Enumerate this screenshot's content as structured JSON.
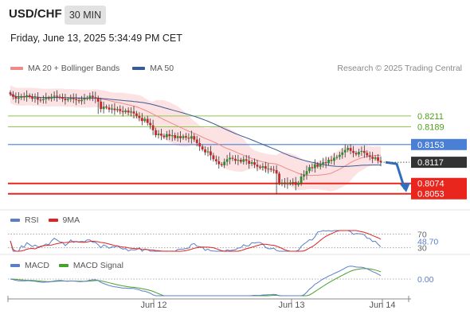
{
  "header": {
    "pair": "USD/CHF",
    "timeframe": "30 MIN",
    "datetime": "Friday, June 13, 2025 5:34:49 PM CET"
  },
  "legends": {
    "main": [
      {
        "label": "MA 20 + Bollinger Bands",
        "color": "#f08a8a"
      },
      {
        "label": "MA 50",
        "color": "#3a5a96"
      }
    ],
    "rsi": [
      {
        "label": "RSI",
        "color": "#5a7ec8"
      },
      {
        "label": "9MA",
        "color": "#e22222"
      }
    ],
    "macd": [
      {
        "label": "MACD",
        "color": "#5a7ec8"
      },
      {
        "label": "MACD Signal",
        "color": "#4aa02c"
      }
    ]
  },
  "copyright": "Research © 2025 Trading Central",
  "colors": {
    "up": "#2e8b2e",
    "down": "#c62828",
    "band": "#fbd8d8",
    "ma20": "#f08a8a",
    "ma50": "#3a5a96",
    "support": "#e8261d",
    "resistance": "#8cc84b",
    "pivot": "#4a7fd6",
    "price_box": "#333333",
    "forecast_arrow": "#2f6fbe"
  },
  "chart_data": [
    {
      "type": "candlestick",
      "title": "USD/CHF 30 MIN",
      "x_ticks": [
        "Jun 12",
        "Jun 13",
        "Jun 14"
      ],
      "last_price": 0.8117,
      "levels": [
        {
          "value": 0.8211,
          "label": "0.8211",
          "kind": "resistance"
        },
        {
          "value": 0.8189,
          "label": "0.8189",
          "kind": "resistance"
        },
        {
          "value": 0.8153,
          "label": "0.8153",
          "kind": "pivot"
        },
        {
          "value": 0.8074,
          "label": "0.8074",
          "kind": "support"
        },
        {
          "value": 0.8053,
          "label": "0.8053",
          "kind": "support"
        }
      ],
      "closes": [
        0.8255,
        0.825,
        0.8246,
        0.8248,
        0.8251,
        0.8249,
        0.8253,
        0.825,
        0.8246,
        0.8248,
        0.8244,
        0.8243,
        0.8245,
        0.8248,
        0.8246,
        0.825,
        0.8252,
        0.825,
        0.8249,
        0.8246,
        0.8243,
        0.8245,
        0.8248,
        0.8245,
        0.8243,
        0.8241,
        0.8244,
        0.8246,
        0.8248,
        0.8252,
        0.8249,
        0.8247,
        0.824,
        0.8225,
        0.823,
        0.8228,
        0.8224,
        0.8226,
        0.8223,
        0.8225,
        0.8221,
        0.8219,
        0.8222,
        0.8218,
        0.822,
        0.8216,
        0.8211,
        0.8207,
        0.8201,
        0.8205,
        0.8197,
        0.8192,
        0.8182,
        0.8172,
        0.8175,
        0.8171,
        0.8168,
        0.8174,
        0.817,
        0.8172,
        0.8166,
        0.817,
        0.8166,
        0.817,
        0.8167,
        0.8165,
        0.817,
        0.8163,
        0.8156,
        0.8149,
        0.8143,
        0.8137,
        0.8139,
        0.8131,
        0.8123,
        0.8119,
        0.8113,
        0.8111,
        0.8118,
        0.8123,
        0.8126,
        0.8124,
        0.812,
        0.8122,
        0.8118,
        0.8123,
        0.812,
        0.8114,
        0.8117,
        0.8112,
        0.8108,
        0.8106,
        0.8109,
        0.8104,
        0.8104,
        0.8102,
        0.8101,
        0.8094,
        0.8074,
        0.8076,
        0.8073,
        0.8075,
        0.8076,
        0.8077,
        0.8071,
        0.8075,
        0.8088,
        0.8092,
        0.8099,
        0.8107,
        0.8105,
        0.8113,
        0.8108,
        0.8114,
        0.8117,
        0.8115,
        0.8122,
        0.812,
        0.8126,
        0.8128,
        0.8132,
        0.8137,
        0.8142,
        0.8146,
        0.814,
        0.8136,
        0.8133,
        0.8138,
        0.814,
        0.8136,
        0.8131,
        0.8128,
        0.8124,
        0.8127,
        0.812,
        0.8117
      ],
      "forecast": {
        "from": 0.8117,
        "to": 0.8053,
        "direction": "down"
      },
      "ylim": [
        0.803,
        0.8285
      ]
    },
    {
      "type": "line",
      "title": "RSI",
      "series": [
        {
          "name": "RSI"
        },
        {
          "name": "9MA"
        }
      ],
      "levels": [
        70,
        30
      ],
      "last_value_label": "48.70",
      "ylim": [
        20,
        80
      ]
    },
    {
      "type": "line",
      "title": "MACD",
      "series": [
        {
          "name": "MACD"
        },
        {
          "name": "MACD Signal"
        }
      ],
      "zero_label": "0.00"
    }
  ]
}
